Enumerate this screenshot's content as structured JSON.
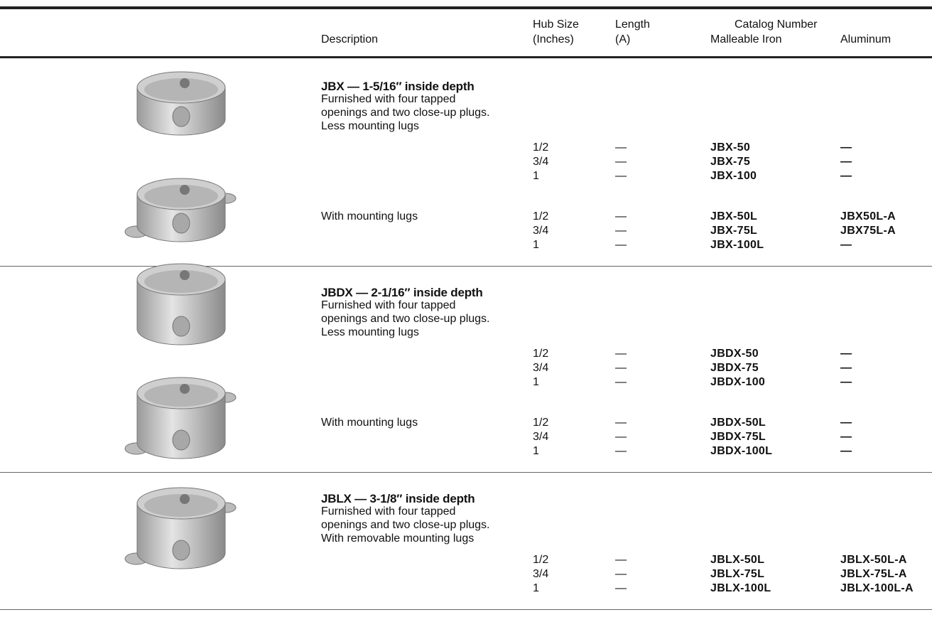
{
  "header": {
    "description": "Description",
    "hub_size": [
      "Hub Size",
      "(Inches)"
    ],
    "length": [
      "Length",
      "(A)"
    ],
    "catalog_number": "Catalog Number",
    "malleable_iron": "Malleable Iron",
    "aluminum": "Aluminum"
  },
  "sections": [
    {
      "title": "JBX — 1-5/16″ inside depth",
      "description": [
        "Furnished with four tapped",
        "openings and two close-up plugs.",
        "Less mounting lugs"
      ],
      "groups": [
        {
          "rows": [
            [
              "1/2",
              "—",
              "JBX-50",
              "—"
            ],
            [
              "3/4",
              "—",
              "JBX-75",
              "—"
            ],
            [
              "1",
              "—",
              "JBX-100",
              "—"
            ]
          ]
        },
        {
          "label": "With mounting lugs",
          "rows": [
            [
              "1/2",
              "—",
              "JBX-50L",
              "JBX50L-A"
            ],
            [
              "3/4",
              "—",
              "JBX-75L",
              "JBX75L-A"
            ],
            [
              "1",
              "—",
              "JBX-100L",
              "—"
            ]
          ]
        }
      ]
    },
    {
      "title": "JBDX — 2-1/16″ inside depth",
      "description": [
        "Furnished with four tapped",
        "openings and two close-up plugs.",
        "Less mounting lugs"
      ],
      "groups": [
        {
          "rows": [
            [
              "1/2",
              "—",
              "JBDX-50",
              "—"
            ],
            [
              "3/4",
              "—",
              "JBDX-75",
              "—"
            ],
            [
              "1",
              "—",
              "JBDX-100",
              "—"
            ]
          ]
        },
        {
          "label": "With mounting lugs",
          "rows": [
            [
              "1/2",
              "—",
              "JBDX-50L",
              "—"
            ],
            [
              "3/4",
              "—",
              "JBDX-75L",
              "—"
            ],
            [
              "1",
              "—",
              "JBDX-100L",
              "—"
            ]
          ]
        }
      ]
    },
    {
      "title": "JBLX — 3-1/8″ inside depth",
      "description": [
        "Furnished with four tapped",
        "openings and two close-up plugs.",
        "With removable mounting lugs"
      ],
      "groups": [
        {
          "rows": [
            [
              "1/2",
              "—",
              "JBLX-50L",
              "JBLX-50L-A"
            ],
            [
              "3/4",
              "—",
              "JBLX-75L",
              "JBLX-75L-A"
            ],
            [
              "1",
              "—",
              "JBLX-100L",
              "JBLX-100L-A"
            ]
          ]
        }
      ]
    }
  ]
}
